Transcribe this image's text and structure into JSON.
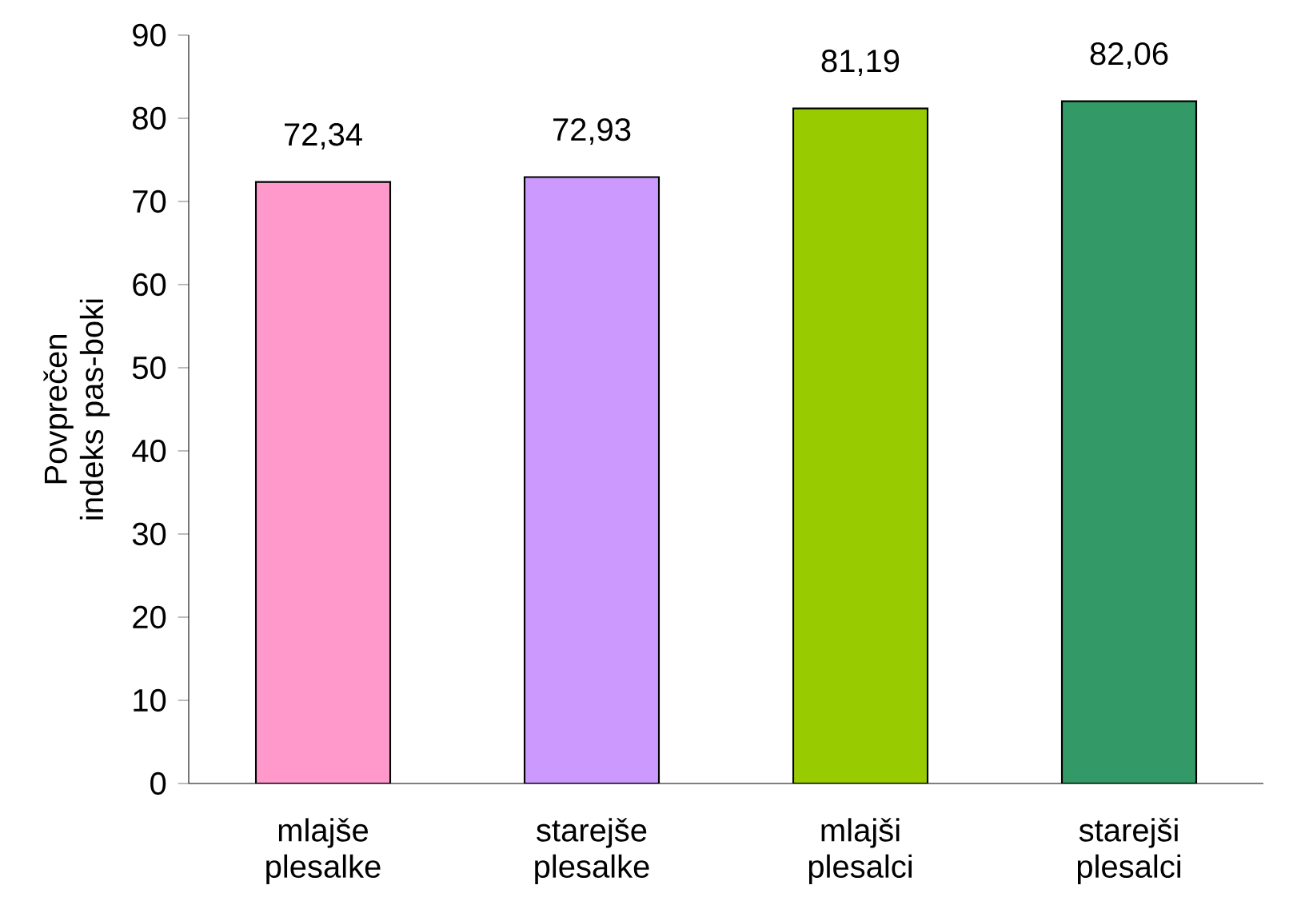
{
  "chart_data": {
    "type": "bar",
    "ylabel": "Povprečen indeks pas-boki",
    "categories": [
      "mlajše plesalke",
      "starejše plesalke",
      "mlajši plesalci",
      "starejši plesalci"
    ],
    "values": [
      72.34,
      72.93,
      81.19,
      82.06
    ],
    "value_labels": [
      "72,34",
      "72,93",
      "81,19",
      "82,06"
    ],
    "colors": [
      "#ff99cc",
      "#cc99ff",
      "#99cc00",
      "#339966"
    ],
    "ylim": [
      0,
      90
    ],
    "yticks": [
      0,
      10,
      20,
      30,
      40,
      50,
      60,
      70,
      80,
      90
    ],
    "grid": false
  }
}
